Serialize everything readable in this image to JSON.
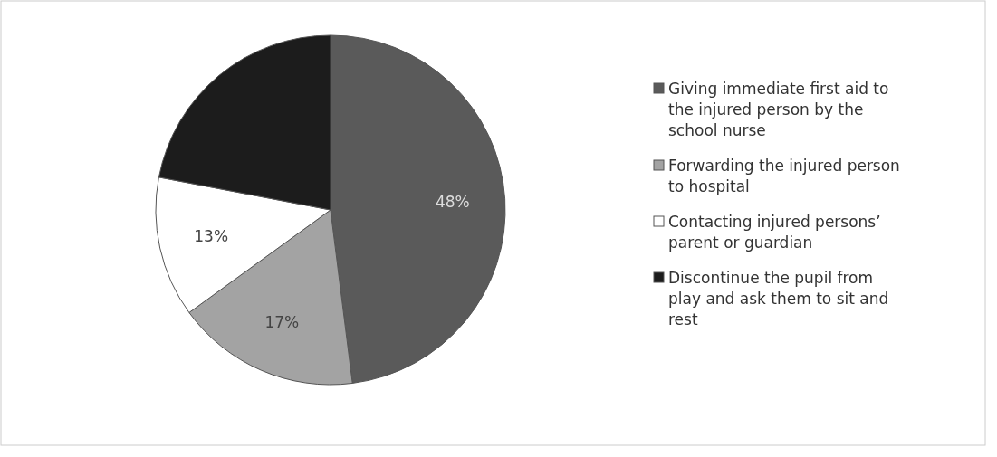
{
  "chart_data": {
    "type": "pie",
    "categories": [
      "Giving immediate first aid to the injured person by the school nurse",
      "Forwarding the injured person to hospital",
      "Contacting injured persons’ parent or guardian",
      "Discontinue the pupil from play and ask them to sit and rest"
    ],
    "values": [
      48,
      17,
      13,
      22
    ],
    "colors": [
      "#5a5a5a",
      "#a3a3a3",
      "#ffffff",
      "#1c1c1c"
    ],
    "value_labels": [
      "48%",
      "17%",
      "13%",
      null
    ],
    "legend": "right"
  }
}
